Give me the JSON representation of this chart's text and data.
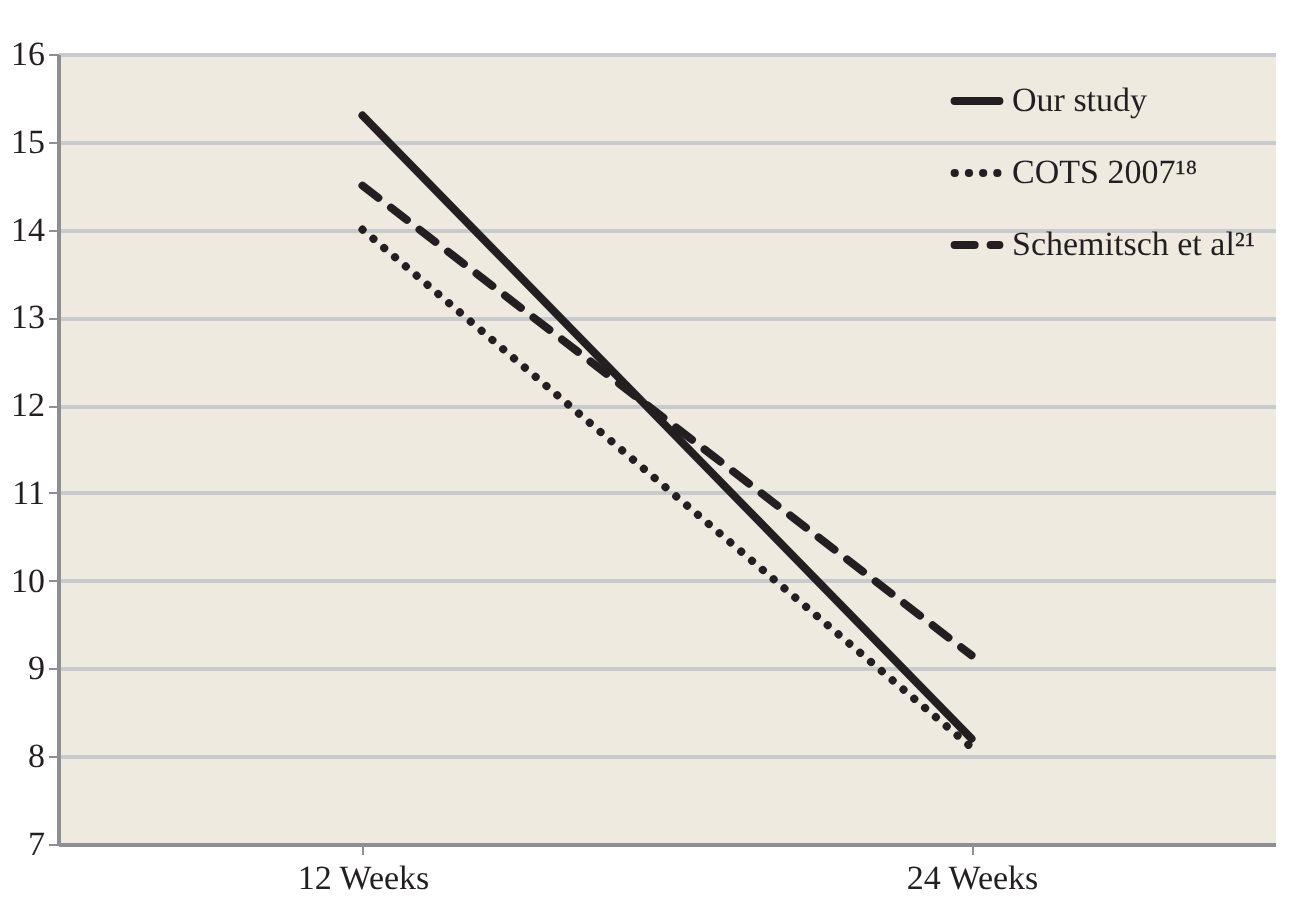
{
  "chart_data": {
    "type": "line",
    "categories": [
      "12 Weeks",
      "24 Weeks"
    ],
    "series": [
      {
        "name": "Our study",
        "color": "#231f20",
        "line_style": "solid",
        "values": [
          15.3,
          8.2
        ]
      },
      {
        "name": "COTS 2007¹⁸",
        "color": "#231f20",
        "line_style": "dotted",
        "values": [
          14.0,
          8.1
        ]
      },
      {
        "name": "Schemitsch et al²¹",
        "color": "#231f20",
        "line_style": "dashed",
        "values": [
          14.5,
          9.15
        ]
      }
    ],
    "ylim": [
      7,
      16
    ],
    "yticks": [
      7,
      8,
      9,
      10,
      11,
      12,
      13,
      14,
      15,
      16
    ],
    "grid": "y",
    "legend": "top right",
    "marker": "none"
  }
}
